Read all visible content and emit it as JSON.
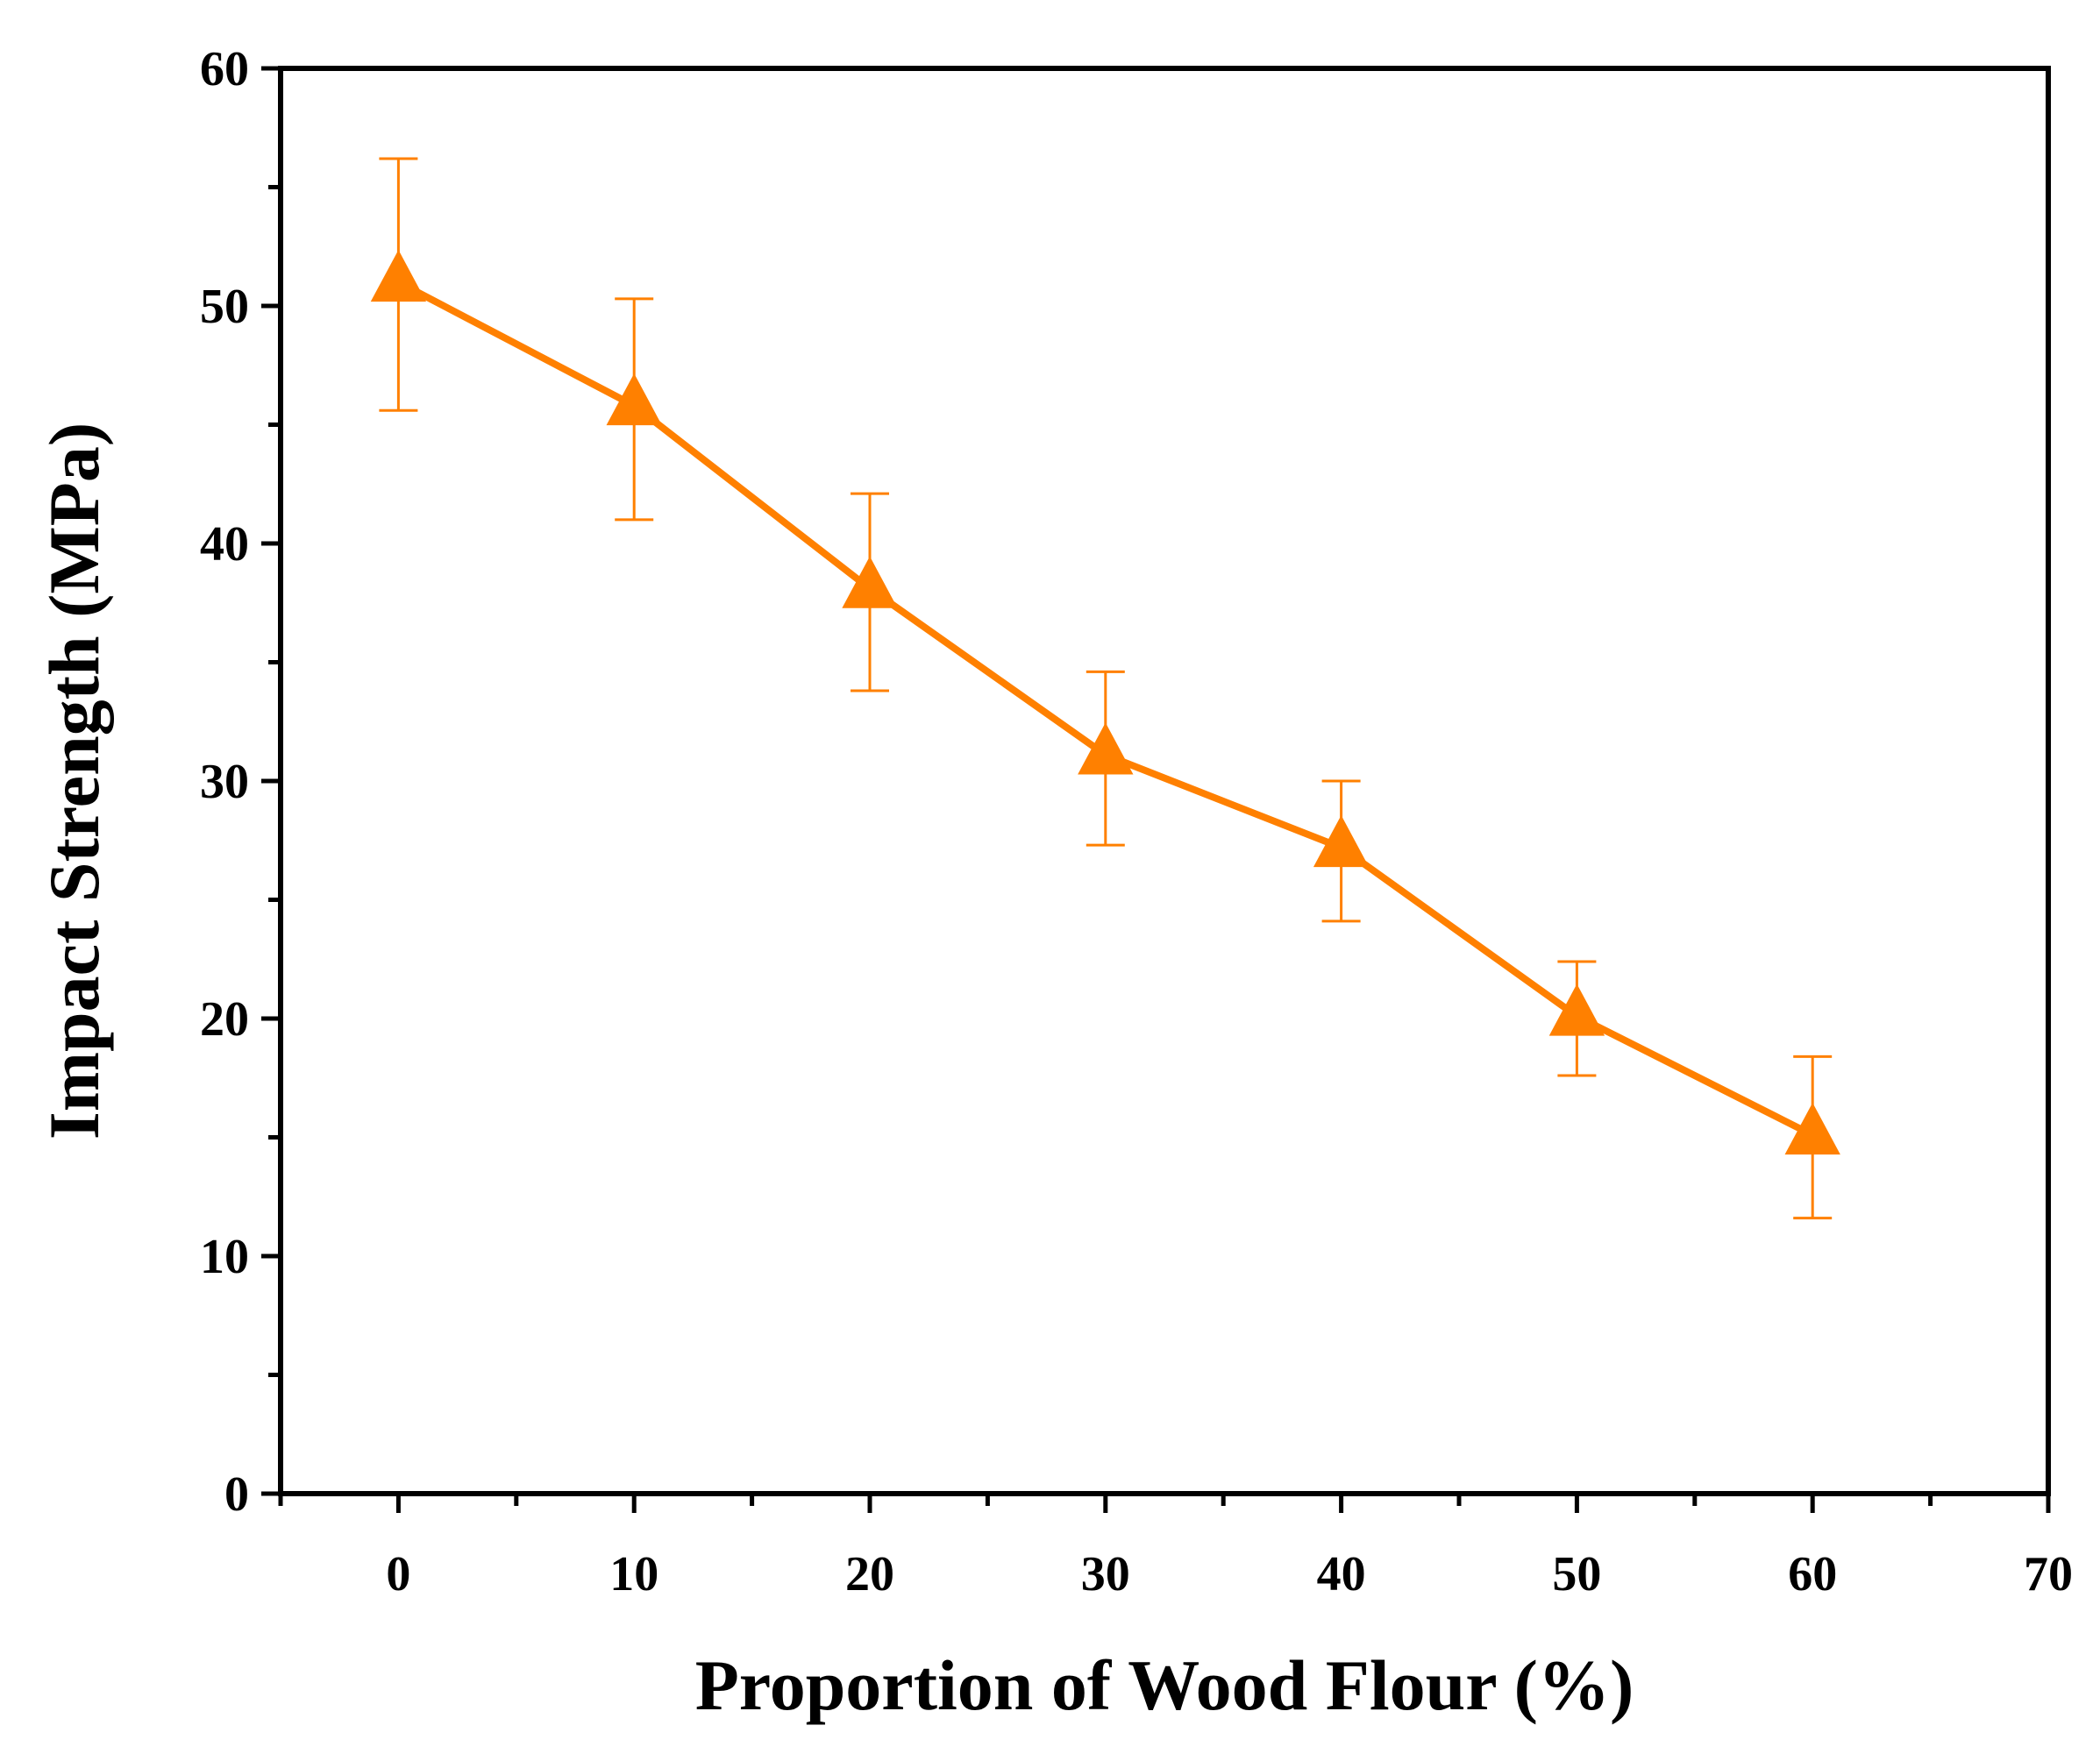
{
  "chart_data": {
    "type": "line",
    "title": "",
    "xlabel": "Proportion of Wood Flour (%)",
    "ylabel": "Impact Strength (MPa)",
    "xlim": [
      -5,
      70
    ],
    "ylim": [
      0,
      60
    ],
    "x_ticks": [
      0,
      10,
      20,
      30,
      40,
      50,
      60,
      70
    ],
    "y_ticks": [
      0,
      10,
      20,
      30,
      40,
      50,
      60
    ],
    "x_tick_labels": [
      "0",
      "10",
      "20",
      "30",
      "40",
      "50",
      "60",
      "70"
    ],
    "y_tick_labels": [
      "0",
      "10",
      "20",
      "30",
      "40",
      "50",
      "60"
    ],
    "grid": false,
    "legend": "none",
    "series": [
      {
        "color": "#ff8000",
        "marker": "triangle",
        "x": [
          0,
          10,
          20,
          30,
          40,
          50,
          60
        ],
        "y": [
          51.0,
          45.8,
          38.1,
          31.1,
          27.2,
          20.1,
          15.1
        ],
        "y_err_upper": [
          56.2,
          50.3,
          42.1,
          34.6,
          30.0,
          22.4,
          18.4
        ],
        "y_err_lower": [
          45.6,
          41.0,
          33.8,
          27.3,
          24.1,
          17.6,
          11.6
        ]
      }
    ]
  }
}
